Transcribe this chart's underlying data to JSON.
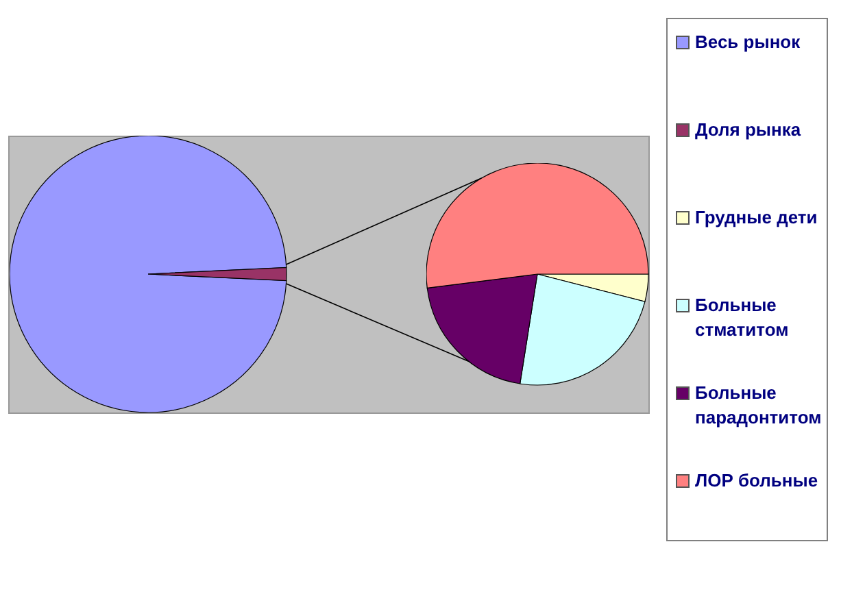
{
  "chart_data": [
    {
      "type": "pie",
      "categories": [
        "Весь рынок",
        "Доля рынка"
      ],
      "values": [
        98.5,
        1.5
      ],
      "colors": [
        "#9999ff",
        "#993366"
      ],
      "legend": "right"
    },
    {
      "type": "pie",
      "categories": [
        "Грудные дети",
        "Больные стматитом",
        "Больные парадонтитом",
        "ЛОР больные"
      ],
      "values": [
        4,
        23.5,
        20.5,
        52
      ],
      "colors": [
        "#ffffcc",
        "#ccffff",
        "#660066",
        "#ff8080"
      ],
      "legend": "right"
    }
  ]
}
